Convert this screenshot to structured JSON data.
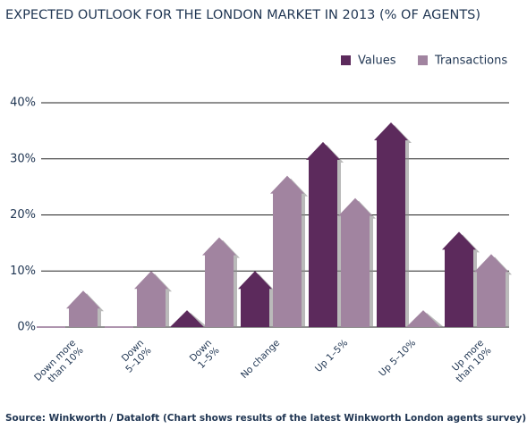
{
  "chart_data": {
    "type": "house-bar",
    "title": "EXPECTED OUTLOOK FOR THE LONDON MARKET IN 2013 (% OF AGENTS)",
    "source": "Source: Winkworth / Dataloft (Chart shows results of the latest Winkworth London agents survey)",
    "categories": [
      [
        "Down more",
        "than 10%"
      ],
      [
        "Down",
        "5–10%"
      ],
      [
        "Down",
        "1–5%"
      ],
      [
        "No change"
      ],
      [
        "Up 1–5%"
      ],
      [
        "Up 5–10%"
      ],
      [
        "Up more",
        "than 10%"
      ]
    ],
    "series": [
      {
        "name": "Values",
        "color": "#5c2a5c",
        "values": [
          0,
          0,
          3,
          10,
          33,
          36.5,
          17
        ]
      },
      {
        "name": "Transactions",
        "color": "#a184a0",
        "values": [
          6.5,
          10,
          16,
          27,
          23,
          3,
          13
        ]
      }
    ],
    "ylim": [
      0,
      40
    ],
    "yticks": [
      {
        "value": 0,
        "label": "0%"
      },
      {
        "value": 10,
        "label": "10%"
      },
      {
        "value": 20,
        "label": "20%"
      },
      {
        "value": 30,
        "label": "30%"
      },
      {
        "value": 40,
        "label": "40%"
      }
    ],
    "grid": true
  }
}
